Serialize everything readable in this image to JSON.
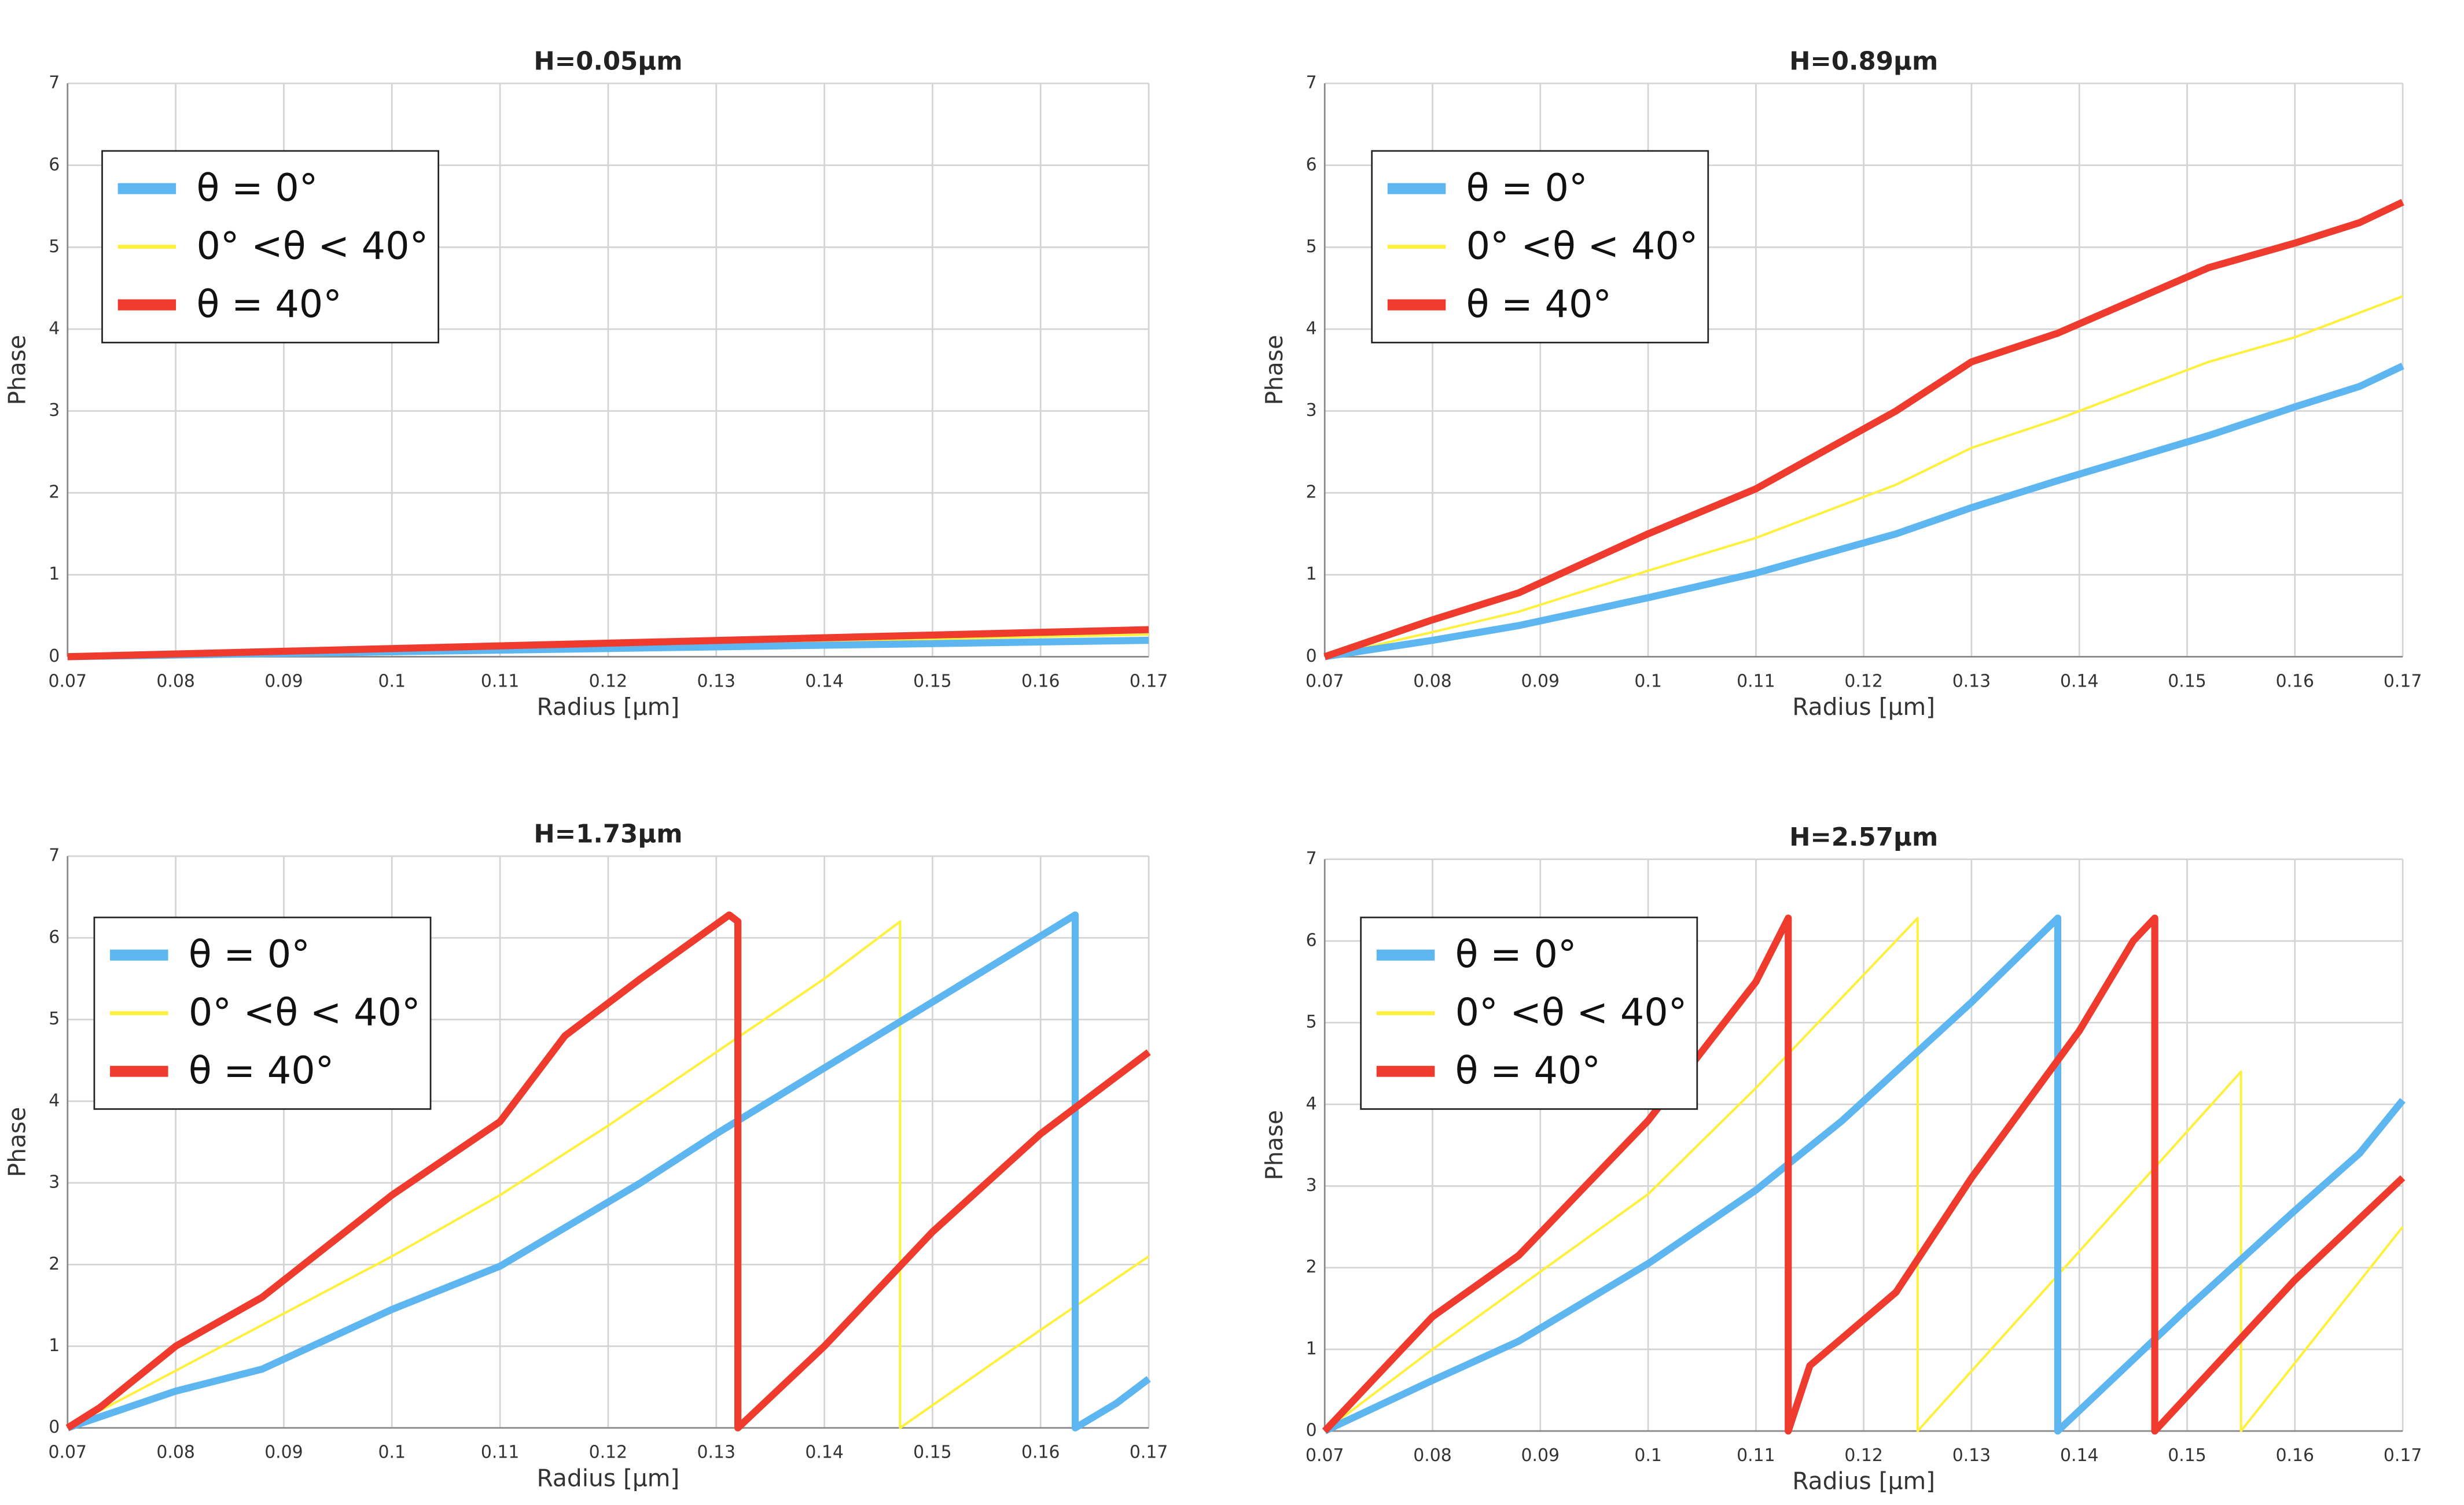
{
  "chart_data": [
    {
      "type": "line",
      "title": "H=0.05µm",
      "x_label": "Radius [µm]",
      "y_label": "Phase",
      "xlim": [
        0.07,
        0.17
      ],
      "ylim": [
        0,
        7
      ],
      "xticks": [
        0.07,
        0.08,
        0.09,
        0.1,
        0.11,
        0.12,
        0.13,
        0.14,
        0.15,
        0.16,
        0.17
      ],
      "yticks": [
        0,
        1,
        2,
        3,
        4,
        5,
        6,
        7
      ],
      "grid": true,
      "legend": "upper left",
      "series": [
        {
          "name": "θ = 0°",
          "color": "#5db6f0",
          "x": [
            0.07,
            0.17
          ],
          "values": [
            0,
            0.2
          ]
        },
        {
          "name": "0° <θ < 40°",
          "color": "#fff03c",
          "x": [
            0.07,
            0.17
          ],
          "values": [
            0,
            0.27
          ]
        },
        {
          "name": "θ = 40°",
          "color": "#ee3b2e",
          "x": [
            0.07,
            0.17
          ],
          "values": [
            0,
            0.33
          ]
        }
      ]
    },
    {
      "type": "line",
      "title": "H=0.89µm",
      "x_label": "Radius [µm]",
      "y_label": "Phase",
      "xlim": [
        0.07,
        0.17
      ],
      "ylim": [
        0,
        7
      ],
      "xticks": [
        0.07,
        0.08,
        0.09,
        0.1,
        0.11,
        0.12,
        0.13,
        0.14,
        0.15,
        0.16,
        0.17
      ],
      "yticks": [
        0,
        1,
        2,
        3,
        4,
        5,
        6,
        7
      ],
      "grid": true,
      "legend": "upper left",
      "series": [
        {
          "name": "θ = 0°",
          "color": "#5db6f0",
          "x": [
            0.07,
            0.08,
            0.088,
            0.1,
            0.11,
            0.123,
            0.13,
            0.138,
            0.152,
            0.16,
            0.166,
            0.17
          ],
          "values": [
            0,
            0.2,
            0.38,
            0.72,
            1.02,
            1.5,
            1.82,
            2.15,
            2.7,
            3.05,
            3.3,
            3.55
          ]
        },
        {
          "name": "0° <θ < 40°",
          "color": "#fff03c",
          "x": [
            0.07,
            0.08,
            0.088,
            0.1,
            0.11,
            0.123,
            0.13,
            0.138,
            0.152,
            0.16,
            0.166,
            0.17
          ],
          "values": [
            0,
            0.3,
            0.55,
            1.05,
            1.45,
            2.1,
            2.55,
            2.9,
            3.6,
            3.9,
            4.2,
            4.4
          ]
        },
        {
          "name": "θ = 40°",
          "color": "#ee3b2e",
          "x": [
            0.07,
            0.08,
            0.088,
            0.1,
            0.11,
            0.123,
            0.13,
            0.138,
            0.152,
            0.16,
            0.166,
            0.17
          ],
          "values": [
            0,
            0.45,
            0.78,
            1.5,
            2.05,
            3.0,
            3.6,
            3.95,
            4.75,
            5.05,
            5.3,
            5.55
          ]
        }
      ]
    },
    {
      "type": "line",
      "title": "H=1.73µm",
      "x_label": "Radius [µm]",
      "y_label": "Phase",
      "xlim": [
        0.07,
        0.17
      ],
      "ylim": [
        0,
        7
      ],
      "xticks": [
        0.07,
        0.08,
        0.09,
        0.1,
        0.11,
        0.12,
        0.13,
        0.14,
        0.15,
        0.16,
        0.17
      ],
      "yticks": [
        0,
        1,
        2,
        3,
        4,
        5,
        6,
        7
      ],
      "grid": true,
      "legend": "upper left",
      "series": [
        {
          "name": "θ = 0°",
          "color": "#5db6f0",
          "x": [
            0.07,
            0.08,
            0.088,
            0.1,
            0.11,
            0.123,
            0.13,
            0.1632,
            0.1632,
            0.167,
            0.17
          ],
          "values": [
            0,
            0.45,
            0.72,
            1.45,
            1.98,
            3.0,
            3.6,
            6.28,
            0,
            0.3,
            0.6
          ]
        },
        {
          "name": "0° <θ < 40°",
          "color": "#fff03c",
          "x": [
            0.07,
            0.08,
            0.1,
            0.11,
            0.12,
            0.13,
            0.14,
            0.147,
            0.147,
            0.16,
            0.17
          ],
          "values": [
            0,
            0.7,
            2.1,
            2.85,
            3.7,
            4.6,
            5.5,
            6.2,
            0,
            1.2,
            2.1
          ]
        },
        {
          "name": "θ = 40°",
          "color": "#ee3b2e",
          "x": [
            0.07,
            0.073,
            0.08,
            0.088,
            0.1,
            0.11,
            0.116,
            0.123,
            0.1312,
            0.132,
            0.132,
            0.14,
            0.15,
            0.16,
            0.17
          ],
          "values": [
            0,
            0.25,
            1.0,
            1.6,
            2.85,
            3.75,
            4.8,
            5.5,
            6.28,
            6.2,
            0,
            1.0,
            2.4,
            3.6,
            4.6
          ]
        }
      ]
    },
    {
      "type": "line",
      "title": "H=2.57µm",
      "x_label": "Radius [µm]",
      "y_label": "Phase",
      "xlim": [
        0.07,
        0.17
      ],
      "ylim": [
        0,
        7
      ],
      "xticks": [
        0.07,
        0.08,
        0.09,
        0.1,
        0.11,
        0.12,
        0.13,
        0.14,
        0.15,
        0.16,
        0.17
      ],
      "yticks": [
        0,
        1,
        2,
        3,
        4,
        5,
        6,
        7
      ],
      "grid": true,
      "legend": "upper left",
      "series": [
        {
          "name": "θ = 0°",
          "color": "#5db6f0",
          "x": [
            0.07,
            0.08,
            0.088,
            0.1,
            0.11,
            0.118,
            0.13,
            0.138,
            0.138,
            0.15,
            0.16,
            0.166,
            0.17
          ],
          "values": [
            0,
            0.62,
            1.1,
            2.05,
            2.95,
            3.8,
            5.25,
            6.28,
            0,
            1.5,
            2.7,
            3.4,
            4.05
          ]
        },
        {
          "name": "0° <θ < 40°",
          "color": "#fff03c",
          "x": [
            0.07,
            0.08,
            0.1,
            0.11,
            0.125,
            0.125,
            0.14,
            0.155,
            0.155,
            0.17
          ],
          "values": [
            0,
            1.0,
            2.9,
            4.2,
            6.28,
            0,
            2.2,
            4.4,
            0,
            2.5
          ]
        },
        {
          "name": "θ = 40°",
          "color": "#ee3b2e",
          "x": [
            0.07,
            0.08,
            0.088,
            0.1,
            0.11,
            0.113,
            0.113,
            0.115,
            0.123,
            0.13,
            0.14,
            0.145,
            0.147,
            0.147,
            0.16,
            0.17
          ],
          "values": [
            0,
            1.4,
            2.15,
            3.8,
            5.5,
            6.28,
            0,
            0.8,
            1.7,
            3.1,
            4.9,
            6.0,
            6.28,
            0,
            1.85,
            3.1
          ]
        }
      ]
    }
  ]
}
